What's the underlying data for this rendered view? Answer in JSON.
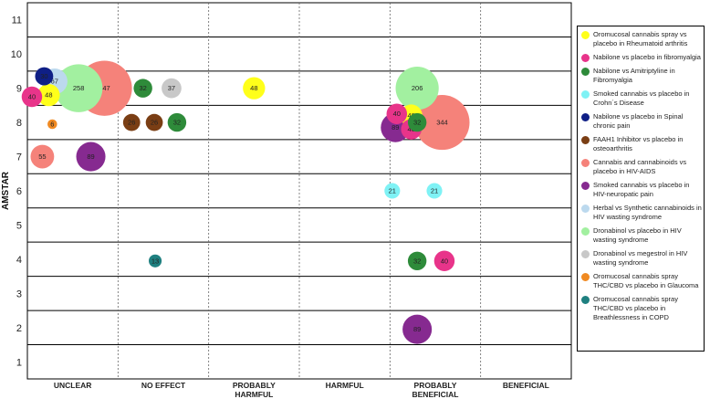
{
  "chart_data": {
    "type": "scatter",
    "ylabel": "AMSTAR",
    "ylim": [
      0.5,
      11.5
    ],
    "yticks": [
      1,
      2,
      3,
      4,
      5,
      6,
      7,
      8,
      9,
      10,
      11
    ],
    "categories": [
      "UNCLEAR",
      "NO EFFECT",
      "PROBABLY HARMFUL",
      "HARMFUL",
      "PROBABLY BENEFICIAL",
      "BENEFICIAL"
    ],
    "category_label_lines": [
      [
        "UNCLEAR"
      ],
      [
        "NO EFFECT"
      ],
      [
        "PROBABLY",
        "HARMFUL"
      ],
      [
        "HARMFUL"
      ],
      [
        "PROBABLY",
        "BENEFICIAL"
      ],
      [
        "BENEFICIAL"
      ]
    ],
    "grid": true,
    "legend_position": "right",
    "series": [
      {
        "name": "Oromucosal cannabis spray vs placebo in Rheumatoid arthritis",
        "color": "#ffff1a"
      },
      {
        "name": "Nabilone vs placebo in fibromyalgia",
        "color": "#e8348a"
      },
      {
        "name": "Nabilone vs Amitriptyline in Fibromyalgia",
        "color": "#2e8b3a"
      },
      {
        "name": "Smoked cannabis vs placebo in Crohn´s Disease",
        "color": "#7ff2f5"
      },
      {
        "name": "Nabilone vs placebo in Spinal chronic pain",
        "color": "#0f1f86"
      },
      {
        "name": "FAAH1 Inhibitor vs placebo in osteoarthritis",
        "color": "#7a3e14"
      },
      {
        "name": "Cannabis and cannabinoids vs placebo in HIV-AIDS",
        "color": "#f5827a"
      },
      {
        "name": "Smoked cannabis vs placebo in HIV-neuropatic pain",
        "color": "#862a90"
      },
      {
        "name": "Herbal vs Synthetic cannabinoids in HIV wasting syndrome",
        "color": "#bcd9ee"
      },
      {
        "name": "Dronabinol vs placebo in HIV wasting syndrome",
        "color": "#a2f0a0"
      },
      {
        "name": "Dronabinol vs megestrol in HIV wasting syndrome",
        "color": "#c8c8c8"
      },
      {
        "name": "Oromucosal cannabis spray THC/CBD vs placebo in Glaucoma",
        "color": "#f08a22"
      },
      {
        "name": "Oromucosal cannabis spray THC/CBD vs placebo in Breathlessness in COPD",
        "color": "#1f8080"
      }
    ],
    "points": [
      {
        "category": "UNCLEAR",
        "x_offset": 0.37,
        "y": 9.35,
        "size": 30,
        "series": 4,
        "label": "30"
      },
      {
        "category": "UNCLEAR",
        "x_offset": 0.6,
        "y": 9.2,
        "size": 67,
        "series": 8,
        "label": "67"
      },
      {
        "category": "UNCLEAR",
        "x_offset": 0.1,
        "y": 8.75,
        "size": 40,
        "series": 1,
        "label": "40"
      },
      {
        "category": "UNCLEAR",
        "x_offset": 0.47,
        "y": 8.8,
        "size": 48,
        "series": 0,
        "label": "48"
      },
      {
        "category": "UNCLEAR",
        "x_offset": 1.7,
        "y": 9.0,
        "size": 347,
        "series": 6,
        "label": "347"
      },
      {
        "category": "UNCLEAR",
        "x_offset": 1.13,
        "y": 9.0,
        "size": 258,
        "series": 9,
        "label": "258"
      },
      {
        "category": "UNCLEAR",
        "x_offset": 0.55,
        "y": 7.95,
        "size": 6,
        "series": 11,
        "label": "6"
      },
      {
        "category": "UNCLEAR",
        "x_offset": 0.33,
        "y": 7.0,
        "size": 55,
        "series": 6,
        "label": "55"
      },
      {
        "category": "UNCLEAR",
        "x_offset": 1.4,
        "y": 7.0,
        "size": 89,
        "series": 7,
        "label": "89"
      },
      {
        "category": "NO EFFECT",
        "x_offset": 0.55,
        "y": 9.0,
        "size": 32,
        "series": 2,
        "label": "32"
      },
      {
        "category": "NO EFFECT",
        "x_offset": 1.18,
        "y": 9.0,
        "size": 37,
        "series": 10,
        "label": "37"
      },
      {
        "category": "NO EFFECT",
        "x_offset": 0.3,
        "y": 8.0,
        "size": 26,
        "series": 5,
        "label": "26"
      },
      {
        "category": "NO EFFECT",
        "x_offset": 0.8,
        "y": 8.0,
        "size": 26,
        "series": 5,
        "label": "26"
      },
      {
        "category": "NO EFFECT",
        "x_offset": 1.3,
        "y": 8.0,
        "size": 32,
        "series": 2,
        "label": "32"
      },
      {
        "category": "NO EFFECT",
        "x_offset": 0.82,
        "y": 3.95,
        "size": 13,
        "series": 12,
        "label": "13"
      },
      {
        "category": "PROBABLY HARMFUL",
        "x_offset": 1.0,
        "y": 9.0,
        "size": 48,
        "series": 0,
        "label": "48"
      },
      {
        "category": "PROBABLY BENEFICIAL",
        "x_offset": 0.6,
        "y": 9.0,
        "size": 206,
        "series": 9,
        "label": "206"
      },
      {
        "category": "PROBABLY BENEFICIAL",
        "x_offset": 0.15,
        "y": 8.25,
        "size": 40,
        "series": 1,
        "label": "40"
      },
      {
        "category": "PROBABLY BENEFICIAL",
        "x_offset": 0.47,
        "y": 8.2,
        "size": 48,
        "series": 0,
        "label": "48"
      },
      {
        "category": "PROBABLY BENEFICIAL",
        "x_offset": 0.6,
        "y": 8.0,
        "size": 32,
        "series": 2,
        "label": "32"
      },
      {
        "category": "PROBABLY BENEFICIAL",
        "x_offset": 1.15,
        "y": 8.0,
        "size": 344,
        "series": 6,
        "label": "344"
      },
      {
        "category": "PROBABLY BENEFICIAL",
        "x_offset": 0.47,
        "y": 7.8,
        "size": 40,
        "series": 1,
        "label": "40"
      },
      {
        "category": "PROBABLY BENEFICIAL",
        "x_offset": 0.12,
        "y": 7.85,
        "size": 89,
        "series": 7,
        "label": "89"
      },
      {
        "category": "PROBABLY BENEFICIAL",
        "x_offset": 0.05,
        "y": 6.0,
        "size": 21,
        "series": 3,
        "label": "21"
      },
      {
        "category": "PROBABLY BENEFICIAL",
        "x_offset": 0.98,
        "y": 6.0,
        "size": 21,
        "series": 3,
        "label": "21"
      },
      {
        "category": "PROBABLY BENEFICIAL",
        "x_offset": 0.6,
        "y": 3.95,
        "size": 32,
        "series": 2,
        "label": "32"
      },
      {
        "category": "PROBABLY BENEFICIAL",
        "x_offset": 1.2,
        "y": 3.95,
        "size": 40,
        "series": 1,
        "label": "40"
      },
      {
        "category": "PROBABLY BENEFICIAL",
        "x_offset": 0.6,
        "y": 1.95,
        "size": 89,
        "series": 7,
        "label": "89"
      }
    ]
  }
}
